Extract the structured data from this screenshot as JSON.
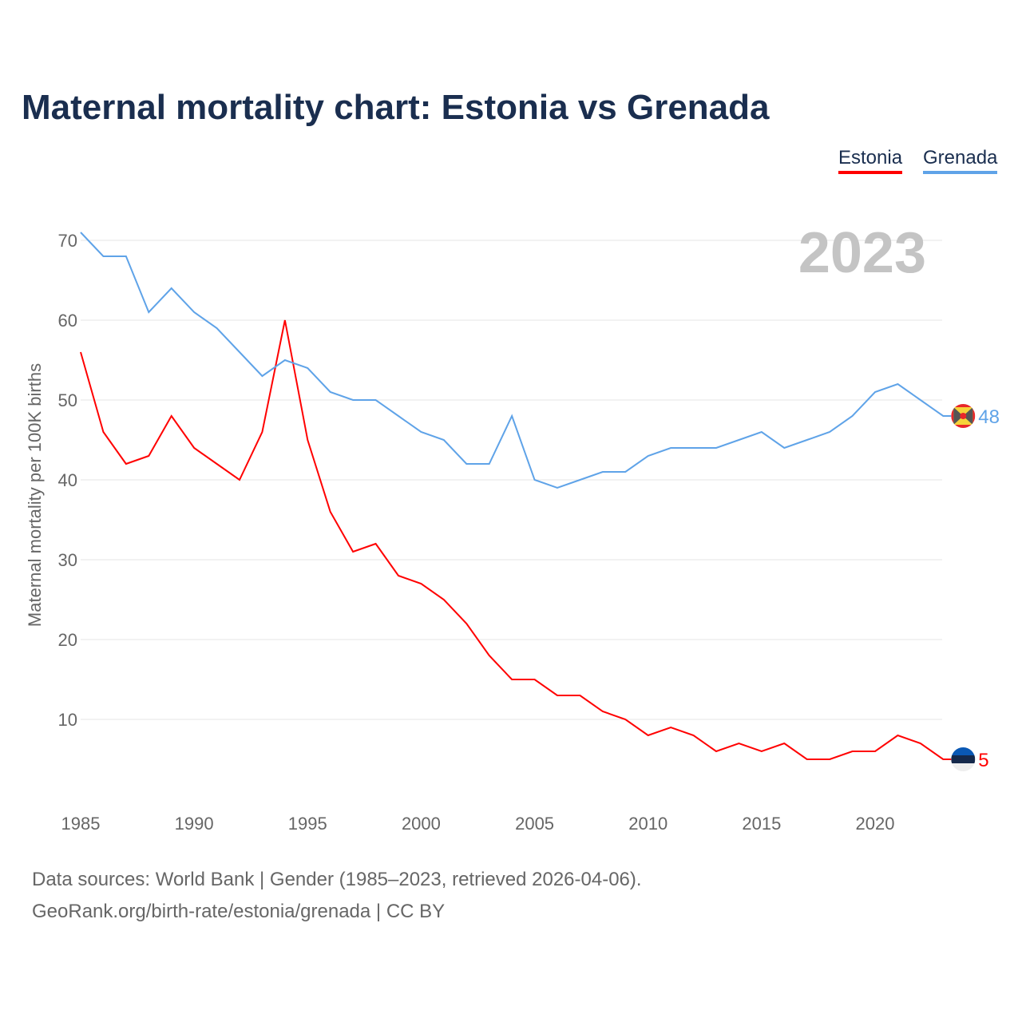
{
  "chart_data": {
    "type": "line",
    "title": "Maternal mortality chart: Estonia vs Grenada",
    "ylabel": "Maternal mortality per 100K births",
    "xlabel": "",
    "year_label": "2023",
    "xlim": [
      1985,
      2023
    ],
    "ylim": [
      0,
      72
    ],
    "yticks": [
      10,
      20,
      30,
      40,
      50,
      60,
      70
    ],
    "xticks": [
      1985,
      1990,
      1995,
      2000,
      2005,
      2010,
      2015,
      2020
    ],
    "x": [
      1985,
      1986,
      1987,
      1988,
      1989,
      1990,
      1991,
      1992,
      1993,
      1994,
      1995,
      1996,
      1997,
      1998,
      1999,
      2000,
      2001,
      2002,
      2003,
      2004,
      2005,
      2006,
      2007,
      2008,
      2009,
      2010,
      2011,
      2012,
      2013,
      2014,
      2015,
      2016,
      2017,
      2018,
      2019,
      2020,
      2021,
      2022,
      2023
    ],
    "series": [
      {
        "name": "Estonia",
        "color": "#ff0000",
        "end_label": "5",
        "values": [
          56,
          46,
          42,
          43,
          48,
          44,
          42,
          40,
          46,
          60,
          45,
          36,
          31,
          32,
          28,
          27,
          25,
          22,
          18,
          15,
          15,
          13,
          13,
          11,
          10,
          8,
          9,
          8,
          6,
          7,
          6,
          7,
          5,
          5,
          6,
          6,
          8,
          7,
          5
        ]
      },
      {
        "name": "Grenada",
        "color": "#5fa3e8",
        "end_label": "48",
        "values": [
          71,
          68,
          68,
          61,
          64,
          61,
          59,
          56,
          53,
          55,
          54,
          51,
          50,
          50,
          48,
          46,
          45,
          42,
          42,
          48,
          40,
          39,
          40,
          41,
          41,
          43,
          44,
          44,
          44,
          45,
          46,
          44,
          45,
          46,
          48,
          51,
          52,
          50,
          48
        ]
      }
    ],
    "legend_position": "top-right",
    "grid": true
  },
  "source": {
    "line1": "Data sources: World Bank | Gender (1985–2023, retrieved 2026-04-06).",
    "line2": "GeoRank.org/birth-rate/estonia/grenada | CC BY"
  }
}
